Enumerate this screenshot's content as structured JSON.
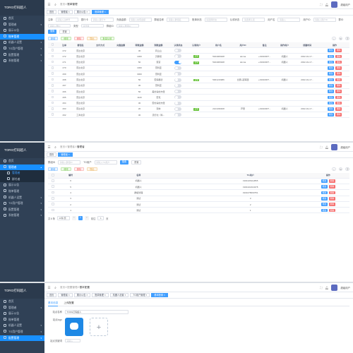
{
  "s1": {
    "logo": "TORG打码超人",
    "menu": [
      {
        "label": "首页"
      },
      {
        "label": "管理者",
        "car": "▾"
      },
      {
        "label": "展示公告"
      },
      {
        "label": "账单管理",
        "active": true
      },
      {
        "label": "机器人设置",
        "car": "▾"
      },
      {
        "label": "TG用户管理",
        "car": "▾"
      },
      {
        "label": "配置管理",
        "car": "▾"
      },
      {
        "label": "系统管理",
        "car": "▾"
      }
    ],
    "breadcrumb": [
      "首页",
      "账单管理"
    ],
    "tags": [
      "首页",
      "管理者",
      "展示公告",
      "账单管理"
    ],
    "filters": [
      {
        "label": "注单",
        "ph": "请输入注单号"
      },
      {
        "label": "银行卡",
        "ph": "请输入银行卡"
      },
      {
        "label": "充值金额",
        "ph": "请输入充值金额"
      },
      {
        "label": "群组名称",
        "ph": "请输入群组名"
      },
      {
        "label": "账单状态",
        "ph": "请选择状态"
      },
      {
        "label": "认领状态",
        "ph": "请选择认领"
      },
      {
        "label": "用户名",
        "ph": "请输入"
      },
      {
        "label": "用户ID",
        "ph": "请输入用户ID"
      },
      {
        "label": "群ID",
        "ph": "请输入群ID"
      },
      {
        "label": "类型",
        "ph": "请选择"
      },
      {
        "label": "群组ID",
        "ph": "请输入群组ID"
      }
    ],
    "search": "搜索",
    "reset": "重置",
    "actions": [
      "新增",
      "修改",
      "删除",
      "导出",
      "批量认领"
    ],
    "cols": [
      "注单",
      "群组名",
      "支付方式",
      "充值金额",
      "转账金额",
      "到账金额",
      "认领状态",
      "认领用户",
      "用户名",
      "用户ID",
      "备注",
      "操作用户",
      "创建时间",
      "操作"
    ],
    "rows": [
      {
        "id": "272",
        "g": "雷达北京",
        "amt": "30",
        "m": "同山山",
        "sw": false
      },
      {
        "id": "272",
        "g": "雷达北京",
        "amt": "1000",
        "m": "贝斯坦",
        "sw": false,
        "st": "正常",
        "u": "5024006948",
        "n": "donna",
        "uid": "+1901000?...",
        "op": "机器人",
        "t": "2022-01-17..."
      },
      {
        "id": "271",
        "g": "雷达北京",
        "amt": "50",
        "m": "贾富",
        "sw": true,
        "st": "正常",
        "u": "5024006948",
        "n": "donna",
        "uid": "+1901000?...",
        "op": "机器人",
        "t": "2022-01-17..."
      },
      {
        "id": "270",
        "g": "雷达北京",
        "amt": "1000",
        "m": "雷利亚",
        "sw": false
      },
      {
        "id": "269",
        "g": "雷达北京",
        "amt": "3000",
        "m": "雷利亚",
        "sw": false
      },
      {
        "id": "268",
        "g": "雷达北京",
        "amt": "50",
        "m": "雷霆都德",
        "sw": false,
        "st": "正常",
        "u": "5001216986",
        "n": "比赛+冠军团",
        "uid": "+1901000?...",
        "op": "机器人",
        "t": "2022-01-17..."
      },
      {
        "id": "267",
        "g": "雷达北京",
        "amt": "30",
        "m": "雷利亚",
        "sw": false
      },
      {
        "id": "266",
        "g": "雷达北京",
        "amt": "50",
        "m": "美约请的方便",
        "sw": false
      },
      {
        "id": "265",
        "g": "雷达北京",
        "amt": "1120",
        "m": "雷克",
        "sw": false
      },
      {
        "id": "264",
        "g": "雷达北京",
        "amt": "30",
        "m": "雷约请的方便",
        "sw": false
      },
      {
        "id": "263",
        "g": "雷达北京",
        "amt": "20",
        "m": "流体",
        "sw": false,
        "st": "正常",
        "u": "2121336408",
        "n": "芦蕾",
        "uid": "+1901000?...",
        "op": "机器人",
        "t": "2022-01-17..."
      },
      {
        "id": "262",
        "g": "工商北京",
        "amt": "30",
        "m": "流行北（料...",
        "sw": false
      }
    ],
    "ops": [
      "修改",
      "删除"
    ]
  },
  "s2": {
    "logo": "TORG打码超人",
    "menu": [
      {
        "label": "首页"
      },
      {
        "label": "管理者",
        "active": true,
        "car": "▴"
      },
      {
        "label": "管理者",
        "sub": true,
        "on": true
      },
      {
        "label": "群付者",
        "sub": true
      },
      {
        "label": "展示公告"
      },
      {
        "label": "账单管理"
      },
      {
        "label": "机器人设置",
        "car": "▾"
      },
      {
        "label": "TG用户管理",
        "car": "▾"
      },
      {
        "label": "配置管理",
        "car": "▾"
      },
      {
        "label": "系统管理",
        "car": "▾"
      }
    ],
    "breadcrumb": [
      "首页",
      "管理者",
      "管理者"
    ],
    "tags": [
      "首页",
      "管理者"
    ],
    "filters": [
      {
        "label": "群组ID",
        "ph": "请输入群组ID"
      },
      {
        "label": "TG用户",
        "ph": "请输入TG用户"
      }
    ],
    "search": "搜索",
    "reset": "重置",
    "actions": [
      "新增",
      "修改",
      "删除",
      "导出"
    ],
    "cols": [
      "编号",
      "名称",
      "TG用户",
      "操作"
    ],
    "rows": [
      {
        "id": "6",
        "name": "机器人",
        "tg": "1901026112865"
      },
      {
        "id": "5",
        "name": "机器人",
        "tg": "1901022119478"
      },
      {
        "id": "4",
        "name": "群组管理",
        "tg": "1901078669751"
      },
      {
        "id": "3",
        "name": "测试",
        "tg": "3"
      },
      {
        "id": "2",
        "name": "测试",
        "tg": "2"
      },
      {
        "id": "1",
        "name": "测试",
        "tg": "1"
      }
    ],
    "ops": [
      "修改",
      "删除"
    ],
    "pag": {
      "total": "共 6 条",
      "size": "10条/页",
      "page": "1",
      "goto": "前往",
      "goto_page": "1",
      "unit": "页"
    }
  },
  "s3": {
    "logo": "TORG打码超人",
    "menu": [
      {
        "label": "首页"
      },
      {
        "label": "管理者",
        "car": "▾"
      },
      {
        "label": "展示公告"
      },
      {
        "label": "账单管理"
      },
      {
        "label": "机器人设置",
        "car": "▾"
      },
      {
        "label": "TG用户管理",
        "car": "▾"
      },
      {
        "label": "配置管理",
        "active": true,
        "car": "▾"
      }
    ],
    "breadcrumb": [
      "首页",
      "配置管理",
      "基本配置"
    ],
    "tags": [
      "首页",
      "管理者",
      "展示公告",
      "账单管理",
      "机器人设置",
      "TG用户管理",
      "基本配置"
    ],
    "subtabs": [
      "基本信息",
      "上传配置"
    ],
    "name_label": "站点名称",
    "name_value": "TORG打码超人",
    "logo_label": "站点logo",
    "extra_label": "站点关键词",
    "extra_value": "请输入"
  },
  "user": {
    "name": "超级用户"
  }
}
